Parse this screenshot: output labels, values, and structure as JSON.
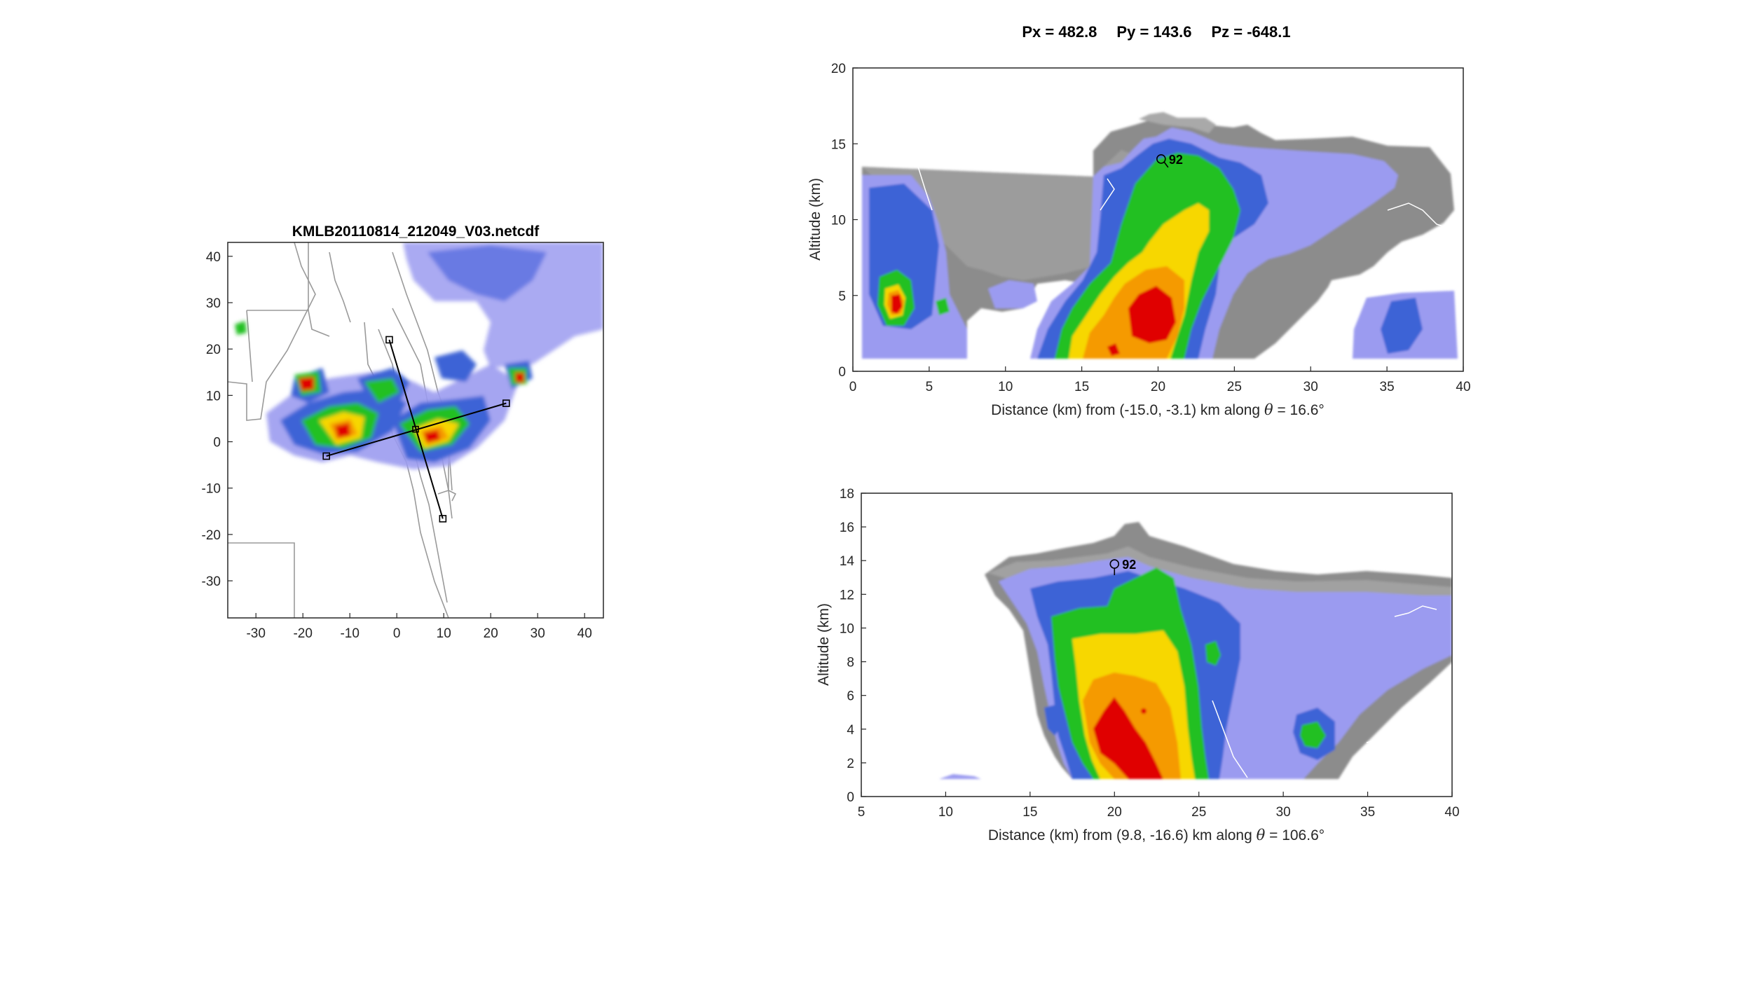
{
  "header": {
    "px_label": "Px = ",
    "px": "482.8",
    "py_label": "Py = ",
    "py": "143.6",
    "pz_label": "Pz = ",
    "pz": "-648.1"
  },
  "colors": {
    "dbz_low": "#9b9bf0",
    "dbz_blue": "#3d63d6",
    "dbz_green": "#20c020",
    "dbz_yellow": "#f7d700",
    "dbz_orange": "#f59a00",
    "dbz_red": "#e00000",
    "fill_gray": "#8c8c8c",
    "edge_gray": "#a9a9a9",
    "coast": "#9a9a9a"
  },
  "chart_data": [
    {
      "type": "heatmap",
      "name": "plan-view",
      "title": "KMLB20110814_212049_V03.netcdf",
      "xlabel": "",
      "ylabel": "",
      "xlim": [
        -36,
        44
      ],
      "ylim": [
        -38,
        43
      ],
      "xticks": [
        -30,
        -20,
        -10,
        0,
        10,
        20,
        30,
        40
      ],
      "yticks": [
        -30,
        -20,
        -10,
        0,
        10,
        20,
        30,
        40
      ],
      "cross_sections": [
        {
          "start": [
            -15.0,
            -3.1
          ],
          "end": [
            23.3,
            8.3
          ]
        },
        {
          "start": [
            -1.6,
            22.0
          ],
          "end": [
            9.8,
            -16.6
          ]
        }
      ],
      "intersection": [
        4.0,
        2.7
      ],
      "cells": [
        {
          "x": -11,
          "y": 3,
          "rx": 8,
          "ry": 5,
          "peak": "red"
        },
        {
          "x": -19,
          "y": 12,
          "rx": 3,
          "ry": 3,
          "peak": "red"
        },
        {
          "x": 3,
          "y": 3,
          "rx": 6,
          "ry": 4,
          "peak": "red"
        },
        {
          "x": 26,
          "y": 13,
          "rx": 3,
          "ry": 2,
          "peak": "red"
        },
        {
          "x": -3,
          "y": 11,
          "rx": 4,
          "ry": 3,
          "peak": "orange"
        },
        {
          "x": 11,
          "y": 13,
          "rx": 3,
          "ry": 2,
          "peak": "green"
        },
        {
          "x": -33,
          "y": 25,
          "rx": 1.5,
          "ry": 1.5,
          "peak": "green"
        }
      ]
    },
    {
      "type": "heatmap",
      "name": "cross-section-1",
      "xlabel_prefix": "Distance (km) from (-15.0, -3.1) km along ",
      "theta_symbol": "θ",
      "xlabel_suffix": " = 16.6°",
      "ylabel": "Altitude (km)",
      "xlim": [
        0,
        40
      ],
      "ylim": [
        0,
        20
      ],
      "xticks": [
        0,
        5,
        10,
        15,
        20,
        25,
        30,
        35,
        40
      ],
      "yticks": [
        0,
        5,
        10,
        15,
        20
      ],
      "marker": {
        "label": "92",
        "x": 20.2,
        "y": 14.0
      }
    },
    {
      "type": "heatmap",
      "name": "cross-section-2",
      "xlabel_prefix": "Distance (km) from (9.8, -16.6) km along ",
      "theta_symbol": "θ",
      "xlabel_suffix": " = 106.6°",
      "ylabel": "Altitude (km)",
      "xlim": [
        5,
        40
      ],
      "ylim": [
        0,
        18
      ],
      "xticks": [
        5,
        10,
        15,
        20,
        25,
        30,
        35,
        40
      ],
      "yticks": [
        0,
        2,
        4,
        6,
        8,
        10,
        12,
        14,
        16,
        18
      ],
      "marker": {
        "label": "92",
        "x": 20.0,
        "y": 13.8
      }
    }
  ]
}
